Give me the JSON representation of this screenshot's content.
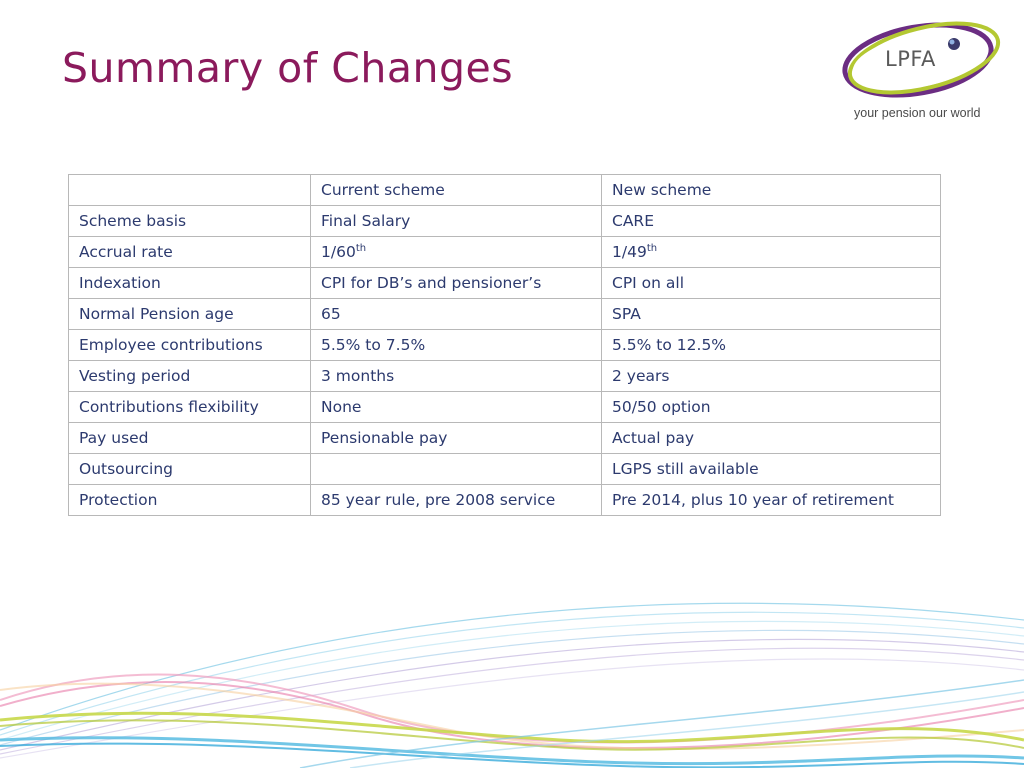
{
  "slide": {
    "title": "Summary of Changes"
  },
  "logo": {
    "text": "LPFA",
    "tagline": "your pension our world"
  },
  "table": {
    "header": [
      "",
      "Current scheme",
      "New scheme"
    ],
    "rows": [
      {
        "label": "Scheme basis",
        "current": "Final Salary",
        "new": "CARE"
      },
      {
        "label": "Accrual rate",
        "current": "1/60",
        "current_sup": "th",
        "new": "1/49",
        "new_sup": "th"
      },
      {
        "label": "Indexation",
        "current": "CPI for DB’s and pensioner’s",
        "new": "CPI on all"
      },
      {
        "label": "Normal Pension age",
        "current": "65",
        "new": "SPA"
      },
      {
        "label": "Employee contributions",
        "current": "5.5% to 7.5%",
        "new": "5.5% to 12.5%"
      },
      {
        "label": "Vesting period",
        "current": "3 months",
        "new": "2 years"
      },
      {
        "label": "Contributions flexibility",
        "current": "None",
        "new": "50/50 option"
      },
      {
        "label": "Pay used",
        "current": "Pensionable pay",
        "new": "Actual pay"
      },
      {
        "label": "Outsourcing",
        "current": "",
        "new": "LGPS still available"
      },
      {
        "label": "Protection",
        "current": "85 year rule, pre 2008 service",
        "new": "Pre 2014, plus 10 year of retirement"
      }
    ]
  },
  "colors": {
    "title": "#8b1a5c",
    "table_text": "#2c3a6e",
    "table_border": "#b8b8b8",
    "logo_purple": "#6b2d82",
    "logo_green": "#b4c832"
  }
}
